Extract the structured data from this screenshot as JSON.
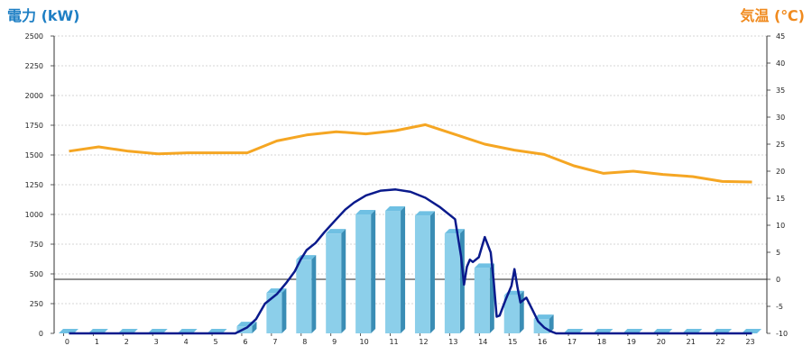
{
  "chart_data": {
    "type": "bar+line",
    "left_axis_title": "電力 (kW)",
    "right_axis_title": "気温 (℃)",
    "categories": [
      "0",
      "1",
      "2",
      "3",
      "4",
      "5",
      "6",
      "7",
      "8",
      "9",
      "10",
      "11",
      "12",
      "13",
      "14",
      "15",
      "16",
      "17",
      "18",
      "19",
      "20",
      "21",
      "22",
      "23"
    ],
    "left_ylim": [
      0,
      2500
    ],
    "left_ticks": [
      "0",
      "250",
      "500",
      "750",
      "1000",
      "1250",
      "1500",
      "1750",
      "2000",
      "2250",
      "2500"
    ],
    "right_ylim": [
      -10,
      45
    ],
    "right_ticks": [
      "-10",
      "-5",
      "0",
      "5",
      "10",
      "15",
      "20",
      "25",
      "30",
      "35",
      "40",
      "45"
    ],
    "grid": true,
    "series": [
      {
        "type": "bar",
        "axis": "left",
        "values": [
          0,
          0,
          0,
          0,
          0,
          0,
          60,
          340,
          620,
          840,
          1000,
          1030,
          990,
          840,
          550,
          320,
          120,
          0,
          0,
          0,
          0,
          0,
          0,
          0
        ]
      },
      {
        "type": "line",
        "axis": "left",
        "x": [
          0,
          1,
          2,
          3,
          4,
          5,
          5.6,
          6,
          6.3,
          6.6,
          7,
          7.3,
          7.6,
          7.8,
          8,
          8.3,
          8.6,
          9,
          9.3,
          9.6,
          10,
          10.5,
          11,
          11.5,
          12,
          12.5,
          13,
          13.2,
          13.3,
          13.4,
          13.5,
          13.6,
          13.8,
          14,
          14.2,
          14.3,
          14.4,
          14.5,
          14.7,
          14.9,
          15,
          15.1,
          15.2,
          15.4,
          15.6,
          15.8,
          16,
          16.2,
          16.4,
          17,
          18,
          19,
          20,
          21,
          22,
          23
        ],
        "y": [
          0,
          0,
          0,
          0,
          0,
          0,
          0,
          50,
          120,
          250,
          330,
          420,
          520,
          620,
          700,
          760,
          850,
          960,
          1040,
          1100,
          1160,
          1200,
          1210,
          1190,
          1140,
          1060,
          960,
          650,
          410,
          560,
          620,
          600,
          640,
          810,
          680,
          440,
          140,
          150,
          280,
          400,
          540,
          390,
          260,
          300,
          200,
          100,
          50,
          20,
          0,
          0,
          0,
          0,
          0,
          0,
          0,
          0
        ]
      },
      {
        "type": "line",
        "axis": "right",
        "values": [
          23.7,
          24.5,
          23.7,
          23.2,
          23.4,
          23.4,
          23.4,
          25.6,
          26.7,
          27.3,
          26.9,
          27.5,
          28.6,
          26.8,
          25,
          23.9,
          23.1,
          21,
          19.6,
          20,
          19.4,
          19,
          18.1,
          18
        ]
      }
    ]
  }
}
